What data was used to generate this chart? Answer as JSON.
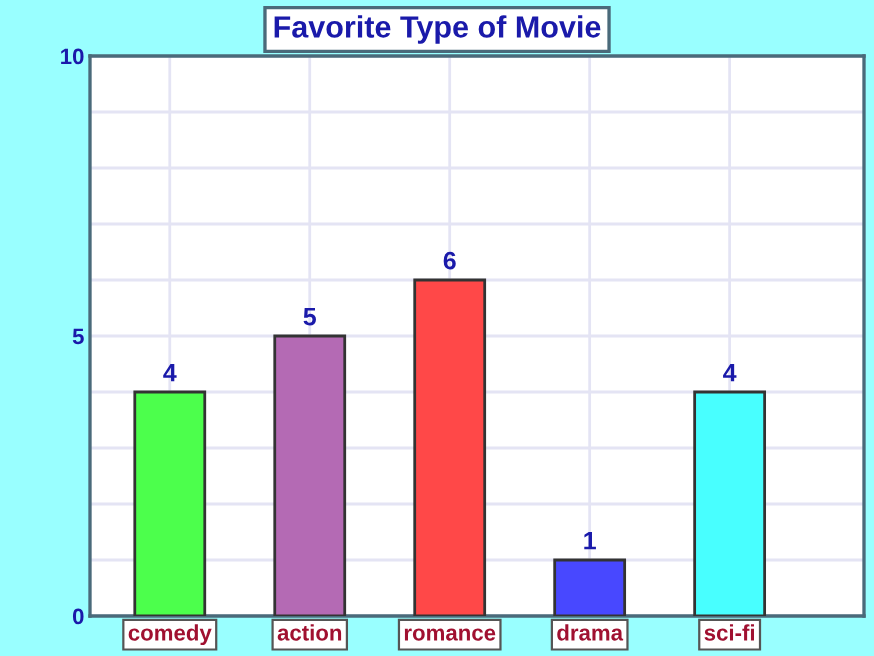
{
  "chart_data": {
    "type": "bar",
    "title": "Favorite Type of Movie",
    "categories": [
      "comedy",
      "action",
      "romance",
      "drama",
      "sci-fi"
    ],
    "values": [
      4,
      5,
      6,
      1,
      4
    ],
    "colors": [
      "#4cff4c",
      "#b46ab4",
      "#ff4848",
      "#4848ff",
      "#48ffff"
    ],
    "ylim": [
      0,
      10
    ],
    "yticks": [
      0,
      {
        "value": 1,
        "label": null
      },
      {
        "value": 2,
        "label": null
      },
      {
        "value": 3,
        "label": null
      },
      {
        "value": 4,
        "label": null
      },
      5,
      {
        "value": 6,
        "label": null
      },
      {
        "value": 7,
        "label": null
      },
      {
        "value": 8,
        "label": null
      },
      {
        "value": 9,
        "label": null
      },
      10
    ],
    "grid": true,
    "data_labels": true
  }
}
